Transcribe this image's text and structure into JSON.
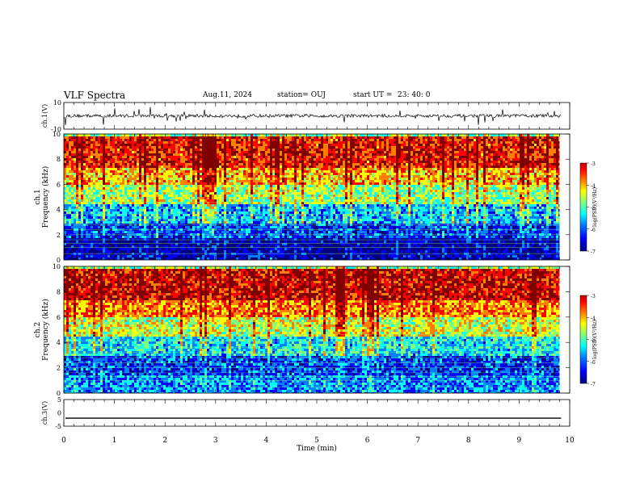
{
  "header": {
    "title": "VLF Spectra",
    "date": "Aug.11, 2024",
    "station": "station= OUJ",
    "start_label": "start  UT  =",
    "start_time": "23: 40: 0"
  },
  "chart_data": [
    {
      "type": "line",
      "name": "ch1-waveform",
      "ylabel": "ch.1(V)",
      "ylim": [
        -10,
        10
      ],
      "yticks": [
        "10",
        "-10"
      ],
      "xlim": [
        0,
        10
      ],
      "baseline": 0,
      "description_note": ""
    },
    {
      "type": "heatmap",
      "name": "ch1-spectrogram",
      "ylabel_line1": "ch.1",
      "ylabel_line2": "Frequency  (kHz)",
      "ylim": [
        0,
        10
      ],
      "yticks": [
        "0",
        "2",
        "4",
        "6",
        "8",
        "10"
      ],
      "xlim": [
        0,
        9.8
      ],
      "colorbar": {
        "label": "log(PSD)(V²/Hz)",
        "ticks": [
          "-3",
          "-4",
          "-5",
          "-6",
          "-7"
        ],
        "range": [
          -7,
          -3
        ]
      },
      "bands_khz": [
        {
          "from": 0,
          "to": 0.4,
          "level": -6.6
        },
        {
          "from": 0.4,
          "to": 1.8,
          "level": -6.7
        },
        {
          "from": 1.8,
          "to": 3.0,
          "level": -6.2
        },
        {
          "from": 3.0,
          "to": 4.5,
          "level": -5.7
        },
        {
          "from": 4.5,
          "to": 6.0,
          "level": -4.9
        },
        {
          "from": 6.0,
          "to": 7.5,
          "level": -4.3
        },
        {
          "from": 7.5,
          "to": 10,
          "level": -3.7
        }
      ]
    },
    {
      "type": "heatmap",
      "name": "ch2-spectrogram",
      "ylabel_line1": "ch.2",
      "ylabel_line2": "Frequency  (kHz)",
      "ylim": [
        0,
        10
      ],
      "yticks": [
        "0",
        "2",
        "4",
        "6",
        "8",
        "10"
      ],
      "xlim": [
        0,
        9.8
      ],
      "colorbar": {
        "label": "log(PSD)(V²/Hz)",
        "ticks": [
          "-3",
          "-4",
          "-5",
          "-6",
          "-7"
        ],
        "range": [
          -7,
          -3
        ]
      },
      "bands_khz": [
        {
          "from": 0,
          "to": 1.5,
          "level": -5.9
        },
        {
          "from": 1.5,
          "to": 3.0,
          "level": -6.2
        },
        {
          "from": 3.0,
          "to": 4.5,
          "level": -5.5
        },
        {
          "from": 4.5,
          "to": 6.0,
          "level": -4.7
        },
        {
          "from": 6.0,
          "to": 7.5,
          "level": -4.1
        },
        {
          "from": 7.5,
          "to": 10,
          "level": -3.5
        }
      ]
    },
    {
      "type": "line",
      "name": "ch3-waveform",
      "ylabel": "ch.3(V)",
      "ylim": [
        -5,
        5
      ],
      "yticks": [
        "5",
        "0",
        "-5"
      ],
      "xlim": [
        0,
        10
      ],
      "value": -2
    }
  ],
  "xaxis": {
    "label": "Time  (min)",
    "ticks": [
      "0",
      "1",
      "2",
      "3",
      "4",
      "5",
      "6",
      "7",
      "8",
      "9",
      "10"
    ]
  },
  "colors": {
    "jet": [
      "#00007f",
      "#0000ff",
      "#007fff",
      "#00ffff",
      "#7fff7f",
      "#ffff00",
      "#ff7f00",
      "#ff0000",
      "#7f0000"
    ]
  }
}
